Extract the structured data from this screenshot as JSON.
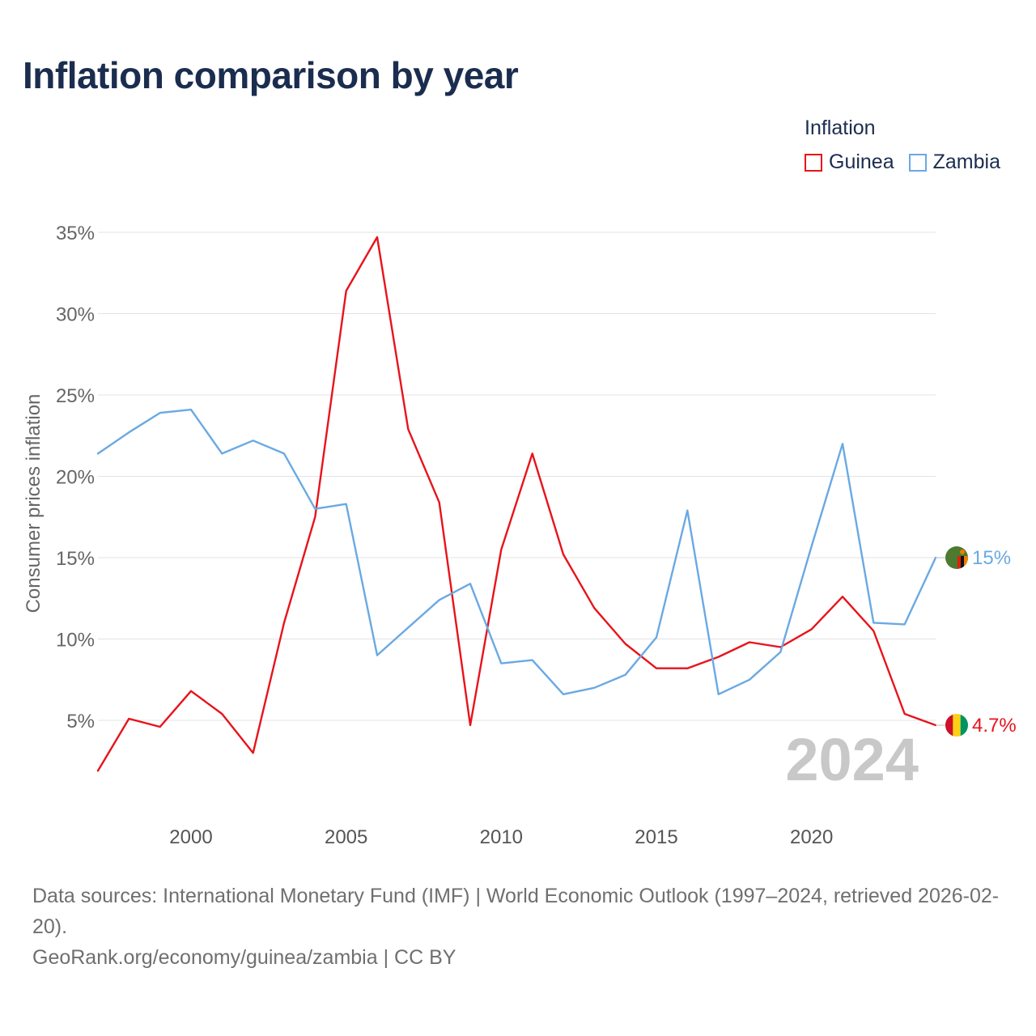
{
  "title": "Inflation comparison by year",
  "legend": {
    "title": "Inflation",
    "items": [
      {
        "label": "Guinea",
        "color": "#e8131b"
      },
      {
        "label": "Zambia",
        "color": "#6aa9e3"
      }
    ]
  },
  "year_watermark": "2024",
  "source": {
    "line1": "Data sources: International Monetary Fund (IMF) | World Economic Outlook (1997–2024, retrieved 2026-02-20).",
    "line2": "GeoRank.org/economy/guinea/zambia | CC BY"
  },
  "chart_data": {
    "type": "line",
    "title": "Inflation comparison by year",
    "xlabel": "",
    "ylabel": "Consumer prices inflation",
    "x": [
      1997,
      1998,
      1999,
      2000,
      2001,
      2002,
      2003,
      2004,
      2005,
      2006,
      2007,
      2008,
      2009,
      2010,
      2011,
      2012,
      2013,
      2014,
      2015,
      2016,
      2017,
      2018,
      2019,
      2020,
      2021,
      2022,
      2023,
      2024
    ],
    "xlim": [
      1997,
      2024
    ],
    "ylim": [
      0,
      35
    ],
    "xticks": [
      2000,
      2005,
      2010,
      2015,
      2020
    ],
    "yticks": [
      5,
      10,
      15,
      20,
      25,
      30,
      35
    ],
    "ytick_labels": [
      "5%",
      "10%",
      "15%",
      "20%",
      "25%",
      "30%",
      "35%"
    ],
    "grid": true,
    "legend_position": "top-right",
    "series": [
      {
        "name": "Guinea",
        "color": "#e8131b",
        "values": [
          1.9,
          5.1,
          4.6,
          6.8,
          5.4,
          3.0,
          11.0,
          17.5,
          31.4,
          34.7,
          22.9,
          18.4,
          4.7,
          15.5,
          21.4,
          15.2,
          11.9,
          9.7,
          8.2,
          8.2,
          8.9,
          9.8,
          9.5,
          10.6,
          12.6,
          10.5,
          5.4,
          4.7
        ],
        "end_label": "4.7%"
      },
      {
        "name": "Zambia",
        "color": "#6aa9e3",
        "values": [
          21.4,
          22.7,
          23.9,
          24.1,
          21.4,
          22.2,
          21.4,
          18.0,
          18.3,
          9.0,
          10.7,
          12.4,
          13.4,
          8.5,
          8.7,
          6.6,
          7.0,
          7.8,
          10.1,
          17.9,
          6.6,
          7.5,
          9.2,
          15.7,
          22.0,
          11.0,
          10.9,
          15.0
        ],
        "end_label": "15%"
      }
    ]
  }
}
